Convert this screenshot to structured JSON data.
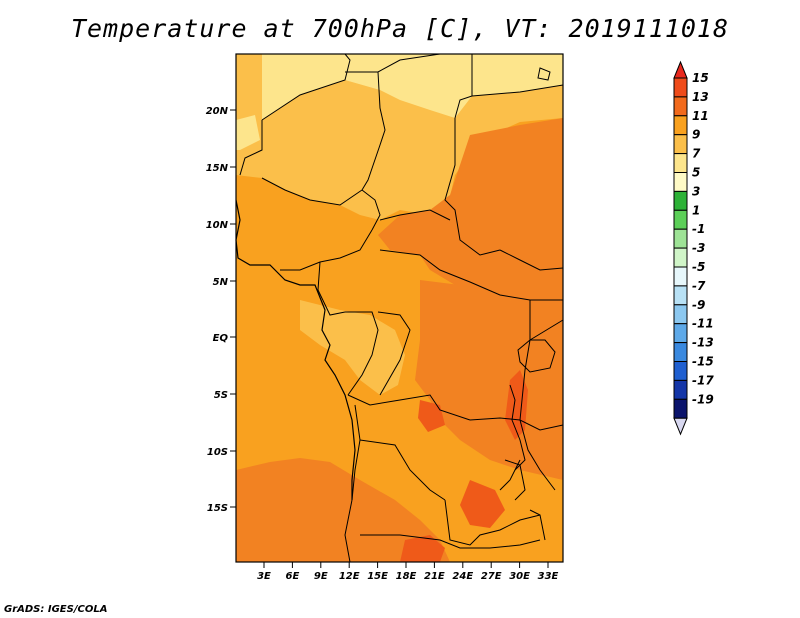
{
  "title": "Temperature at 700hPa [C], VT: 2019111018",
  "credit": "GrADS: IGES/COLA",
  "map": {
    "lat_ticks": [
      "20N",
      "15N",
      "10N",
      "5N",
      "EQ",
      "5S",
      "10S",
      "15S"
    ],
    "lon_ticks": [
      "3E",
      "6E",
      "9E",
      "12E",
      "15E",
      "18E",
      "21E",
      "24E",
      "27E",
      "30E",
      "33E"
    ],
    "colors": {
      "t5": "#fde58c",
      "t7": "#fbbf4a",
      "t9": "#f9a11f",
      "t11": "#f28222",
      "t13": "#ef5a19"
    }
  },
  "colorbar": {
    "labels": [
      "15",
      "13",
      "11",
      "9",
      "7",
      "5",
      "3",
      "1",
      "-1",
      "-3",
      "-5",
      "-7",
      "-9",
      "-11",
      "-13",
      "-15",
      "-17",
      "-19"
    ],
    "colors": [
      "#e8281d",
      "#ef4b1a",
      "#f26a1c",
      "#f9a11f",
      "#fbbf4a",
      "#fde58c",
      "#fffac6",
      "#2db237",
      "#5ccf58",
      "#9ee396",
      "#d0f5c8",
      "#e7f7fb",
      "#b8e1f5",
      "#8cc8f0",
      "#5ea9e8",
      "#3a89df",
      "#1f5fd0",
      "#1436a8",
      "#0b146c",
      "#d8d8f0"
    ]
  }
}
